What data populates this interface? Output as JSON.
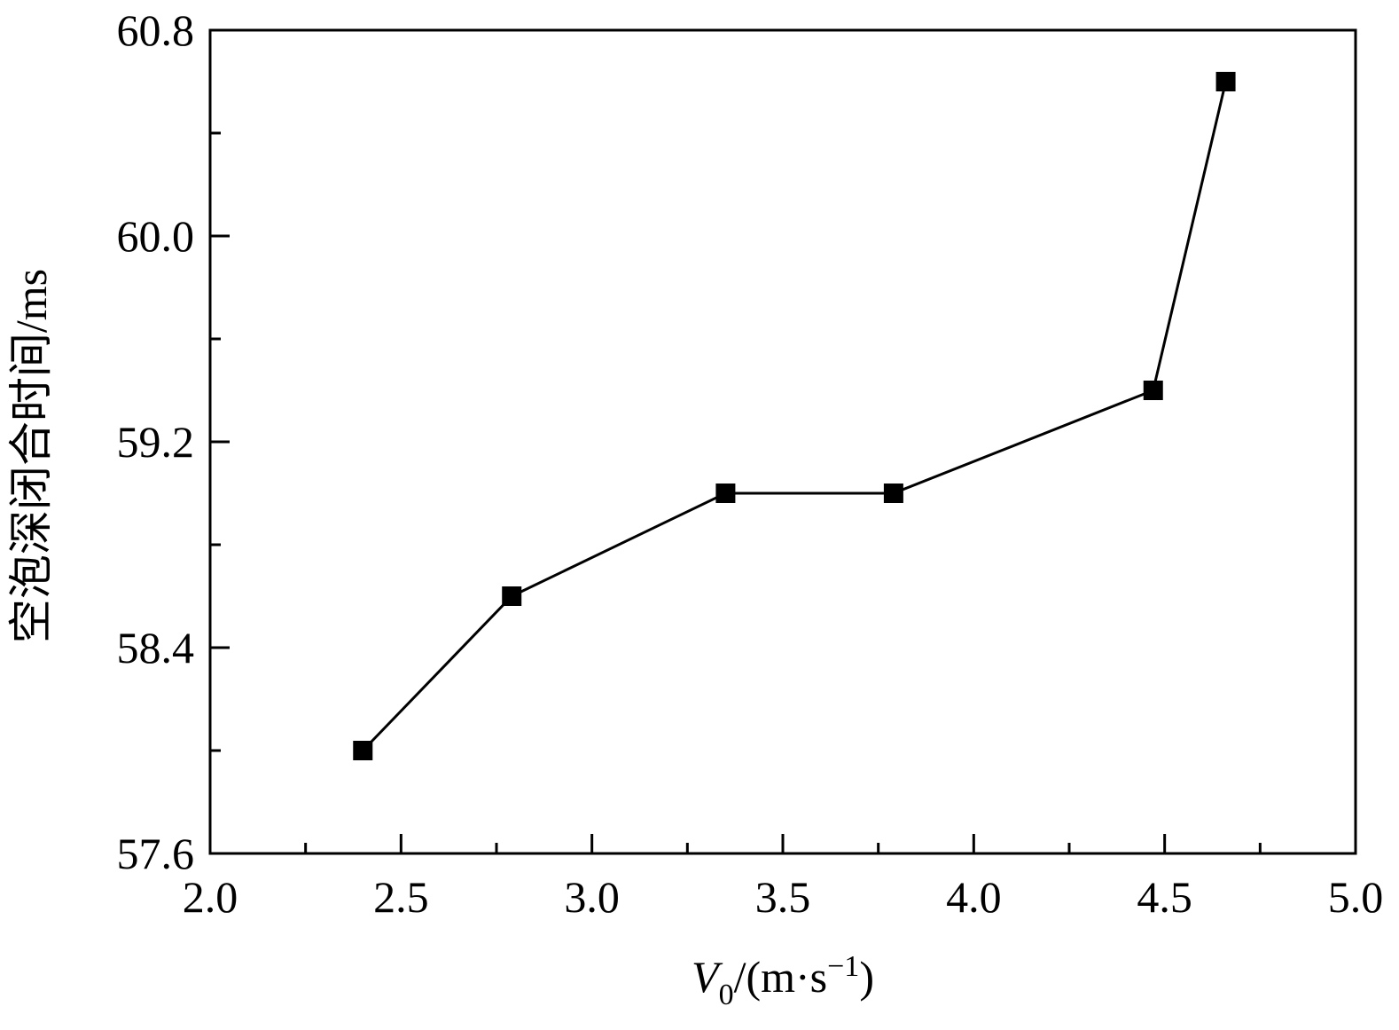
{
  "chart_data": {
    "type": "line",
    "title": "",
    "xlabel": {
      "symbol": "V",
      "subscript": "0",
      "unit_prefix": "/(m·s",
      "unit_exponent": "−1",
      "unit_suffix": ")"
    },
    "ylabel": "空泡深闭合时间/ms",
    "xlim": [
      2.0,
      5.0
    ],
    "ylim": [
      57.6,
      60.8
    ],
    "x_major_ticks": [
      "2.0",
      "2.5",
      "3.0",
      "3.5",
      "4.0",
      "4.5",
      "5.0"
    ],
    "x_minor_ticks": [
      2.25,
      2.75,
      3.25,
      3.75,
      4.25,
      4.75
    ],
    "y_major_ticks": [
      "57.6",
      "58.4",
      "59.2",
      "60.0",
      "60.8"
    ],
    "y_minor_ticks": [
      58.0,
      58.8,
      59.6,
      60.4
    ],
    "grid": false,
    "series": [
      {
        "marker": "square",
        "color": "#000000",
        "x": [
          2.4,
          2.79,
          3.35,
          3.79,
          4.47,
          4.66
        ],
        "y": [
          58.0,
          58.6,
          59.0,
          59.0,
          59.4,
          60.6
        ]
      }
    ]
  }
}
